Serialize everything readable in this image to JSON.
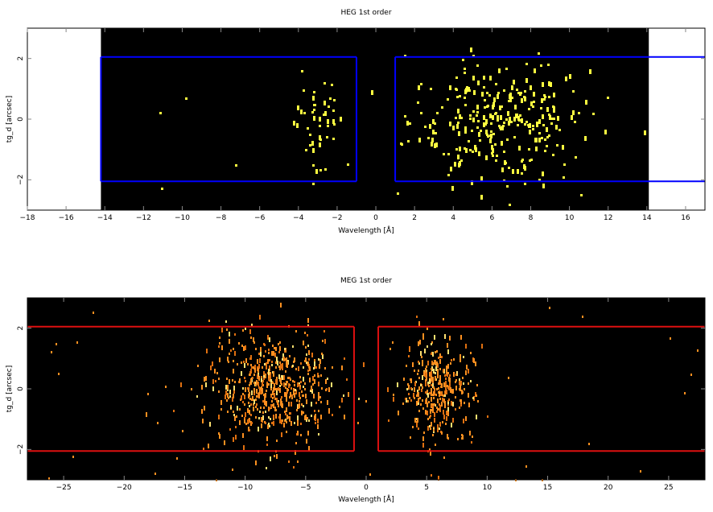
{
  "chart_data": [
    {
      "type": "heatmap",
      "title": "HEG 1st order",
      "xlabel": "Wavelength [Å]",
      "ylabel": "tg_d [arcsec]",
      "xlim": [
        -18,
        17
      ],
      "ylim": [
        -3,
        3
      ],
      "x_ticks": [
        -18,
        -16,
        -14,
        -12,
        -10,
        -8,
        -6,
        -4,
        -2,
        0,
        2,
        4,
        6,
        8,
        10,
        12,
        14,
        16
      ],
      "y_ticks": [
        -2,
        0,
        2
      ],
      "data_extent_x": [
        -14.2,
        14.1
      ],
      "background_color": "#000000",
      "event_color": "#ffff40",
      "box_color": "#0000ff",
      "extraction_boxes": [
        {
          "x": [
            -1.0,
            -14.2
          ],
          "y": [
            -2.05,
            2.05
          ]
        },
        {
          "x": [
            1.0,
            17.0
          ],
          "y": [
            -2.05,
            2.05
          ]
        }
      ],
      "clusters": [
        {
          "xc": -3.1,
          "xs": 0.6,
          "ys": 0.8,
          "n": 45
        },
        {
          "xc": 6.3,
          "xs": 2.3,
          "ys": 0.95,
          "n": 290
        }
      ]
    },
    {
      "type": "heatmap",
      "title": "MEG 1st order",
      "xlabel": "Wavelength [Å]",
      "ylabel": "tg_d [arcsec]",
      "xlim": [
        -28,
        28
      ],
      "ylim": [
        -3,
        3
      ],
      "x_ticks": [
        -25,
        -20,
        -15,
        -10,
        -5,
        0,
        5,
        10,
        15,
        20,
        25
      ],
      "y_ticks": [
        -2,
        0,
        2
      ],
      "data_extent_x": [
        -28,
        28
      ],
      "background_color": "#000000",
      "event_color": "#ff9020",
      "box_color": "#dd1010",
      "extraction_boxes": [
        {
          "x": [
            -1.0,
            -28.0
          ],
          "y": [
            -2.05,
            2.05
          ]
        },
        {
          "x": [
            1.0,
            28.0
          ],
          "y": [
            -2.05,
            2.05
          ]
        }
      ],
      "clusters": [
        {
          "xc": -7.8,
          "xs": 2.6,
          "ys": 0.9,
          "n": 600
        },
        {
          "xc": 5.8,
          "xs": 1.5,
          "ys": 0.85,
          "n": 360
        }
      ]
    }
  ]
}
